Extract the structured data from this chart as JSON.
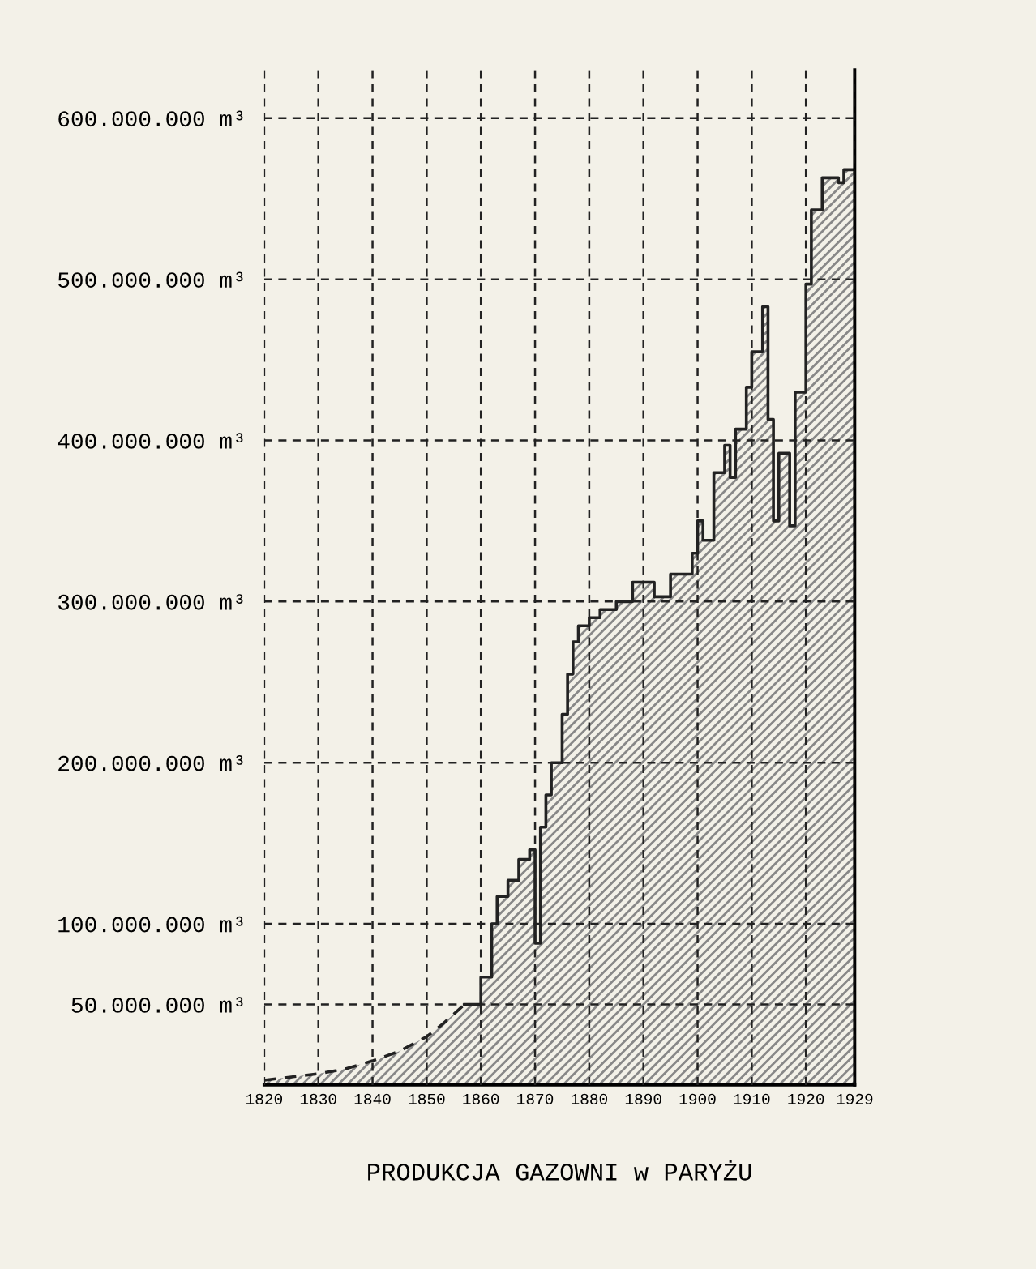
{
  "chart_data": {
    "type": "area",
    "title": "PRODUKCJA GAZOWNI w PARYŻU",
    "series": [
      {
        "line_style": "dashed",
        "color": "#222222",
        "x": [
          1820,
          1825,
          1830,
          1835,
          1840,
          1845,
          1850,
          1853,
          1857
        ],
        "values": [
          3000000,
          5000000,
          7000000,
          10000000,
          15000000,
          21000000,
          30000000,
          38000000,
          50000000
        ]
      },
      {
        "color": "#222222",
        "x": [
          1857,
          1860,
          1860,
          1862,
          1862,
          1863,
          1863,
          1865,
          1865,
          1867,
          1867,
          1869,
          1869,
          1870,
          1870,
          1871,
          1871,
          1872,
          1872,
          1873,
          1873,
          1875,
          1875,
          1876,
          1876,
          1877,
          1877,
          1878,
          1878,
          1880,
          1880,
          1882,
          1882,
          1885,
          1885,
          1888,
          1888,
          1892,
          1892,
          1895,
          1895,
          1899,
          1899,
          1900,
          1900,
          1901,
          1901,
          1903,
          1903,
          1905,
          1905,
          1906,
          1906,
          1907,
          1907,
          1909,
          1909,
          1910,
          1910,
          1912,
          1912,
          1913,
          1913,
          1914,
          1914,
          1915,
          1915,
          1917,
          1917,
          1918,
          1918,
          1920,
          1920,
          1921,
          1921,
          1923,
          1923,
          1926,
          1926,
          1927,
          1927,
          1929
        ],
        "values": [
          50000000,
          50000000,
          67000000,
          67000000,
          100000000,
          100000000,
          117000000,
          117000000,
          127000000,
          127000000,
          140000000,
          140000000,
          146000000,
          146000000,
          88000000,
          88000000,
          160000000,
          160000000,
          180000000,
          180000000,
          200000000,
          200000000,
          230000000,
          230000000,
          255000000,
          255000000,
          275000000,
          275000000,
          285000000,
          285000000,
          290000000,
          290000000,
          295000000,
          295000000,
          300000000,
          300000000,
          312000000,
          312000000,
          303000000,
          303000000,
          317000000,
          317000000,
          330000000,
          330000000,
          350000000,
          350000000,
          338000000,
          338000000,
          380000000,
          380000000,
          397000000,
          397000000,
          377000000,
          377000000,
          407000000,
          407000000,
          433000000,
          433000000,
          455000000,
          455000000,
          483000000,
          483000000,
          413000000,
          413000000,
          350000000,
          350000000,
          392000000,
          392000000,
          347000000,
          347000000,
          430000000,
          430000000,
          497000000,
          497000000,
          543000000,
          543000000,
          563000000,
          563000000,
          560000000,
          560000000,
          568000000,
          568000000
        ]
      }
    ],
    "xlim": [
      1820,
      1929
    ],
    "xticks": [
      1820,
      1830,
      1840,
      1850,
      1860,
      1870,
      1880,
      1890,
      1900,
      1910,
      1920,
      1929
    ],
    "ylim": [
      0,
      630000000
    ],
    "yticks": [
      {
        "value": 50000000,
        "label": "50.000.000 m³"
      },
      {
        "value": 100000000,
        "label": "100.000.000 m³"
      },
      {
        "value": 200000000,
        "label": "200.000.000 m³"
      },
      {
        "value": 300000000,
        "label": "300.000.000 m³"
      },
      {
        "value": 400000000,
        "label": "400.000.000 m³"
      },
      {
        "value": 500000000,
        "label": "500.000.000 m³"
      },
      {
        "value": 600000000,
        "label": "600.000.000 m³"
      }
    ],
    "grid": true
  }
}
